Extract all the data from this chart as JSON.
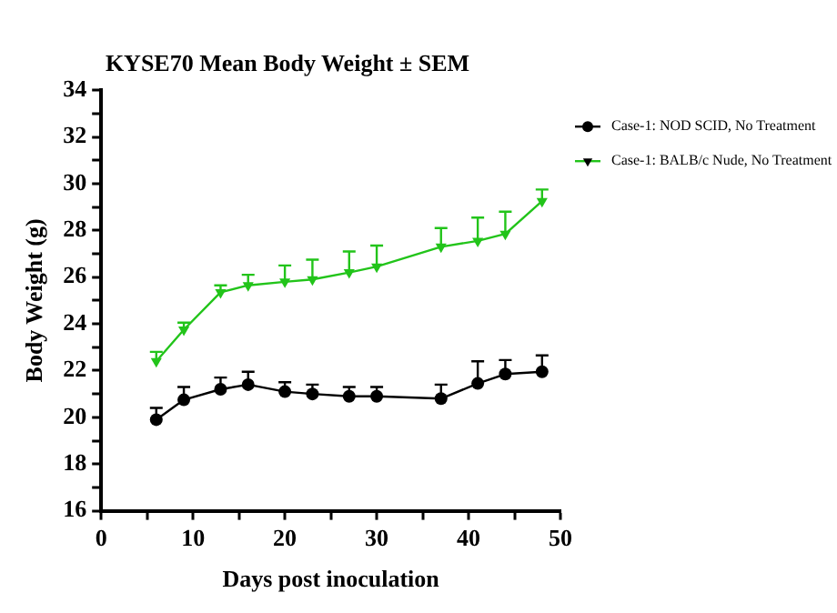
{
  "chart_data": {
    "type": "line",
    "title": "KYSE70 Mean Body Weight ± SEM",
    "xlabel": "Days post inoculation",
    "ylabel": "Body Weight (g)",
    "x": [
      6,
      9,
      13,
      16,
      20,
      23,
      27,
      30,
      37,
      41,
      44,
      48
    ],
    "series": [
      {
        "name": "Case-1: NOD SCID, No Treatment",
        "color": "#000000",
        "marker": "circle",
        "values": [
          19.9,
          20.75,
          21.2,
          21.4,
          21.1,
          21.0,
          20.9,
          20.9,
          20.8,
          21.45,
          21.85,
          21.95
        ],
        "errors": [
          [
            19.9,
            20.4
          ],
          [
            20.75,
            21.3
          ],
          [
            21.2,
            21.7
          ],
          [
            21.4,
            21.95
          ],
          [
            21.1,
            21.5
          ],
          [
            21.0,
            21.4
          ],
          [
            20.9,
            21.3
          ],
          [
            20.9,
            21.3
          ],
          [
            20.8,
            21.4
          ],
          [
            21.45,
            22.4
          ],
          [
            21.85,
            22.45
          ],
          [
            21.95,
            22.65
          ]
        ]
      },
      {
        "name": "Case-1: BALB/c Nude, No Treatment",
        "color": "#22c41a",
        "marker": "triangle-down",
        "values": [
          22.4,
          23.75,
          25.35,
          25.65,
          25.8,
          25.9,
          26.2,
          26.45,
          27.3,
          27.55,
          27.85,
          29.25
        ],
        "errors": [
          [
            22.4,
            22.8
          ],
          [
            23.75,
            24.05
          ],
          [
            25.35,
            25.65
          ],
          [
            25.65,
            26.1
          ],
          [
            25.8,
            26.5
          ],
          [
            25.9,
            26.75
          ],
          [
            26.2,
            27.1
          ],
          [
            26.45,
            27.35
          ],
          [
            27.3,
            28.1
          ],
          [
            27.55,
            28.55
          ],
          [
            27.85,
            28.8
          ],
          [
            29.25,
            29.75
          ]
        ]
      }
    ],
    "xlim": [
      0,
      50
    ],
    "xticks": [
      0,
      {
        "value": 5,
        "label": null
      },
      10,
      {
        "value": 15,
        "label": null
      },
      20,
      {
        "value": 25,
        "label": null
      },
      30,
      {
        "value": 35,
        "label": null
      },
      40,
      {
        "value": 45,
        "label": null
      },
      50
    ],
    "ylim": [
      16,
      34
    ],
    "yticks": [
      16,
      {
        "value": 17,
        "label": null
      },
      18,
      {
        "value": 19,
        "label": null
      },
      20,
      {
        "value": 21,
        "label": null
      },
      22,
      {
        "value": 23,
        "label": null
      },
      24,
      {
        "value": 25,
        "label": null
      },
      26,
      {
        "value": 27,
        "label": null
      },
      28,
      {
        "value": 29,
        "label": null
      },
      30,
      {
        "value": 31,
        "label": null
      },
      32,
      {
        "value": 33,
        "label": null
      },
      34
    ],
    "grid": false,
    "legend": "top right",
    "line_style": "solid"
  }
}
